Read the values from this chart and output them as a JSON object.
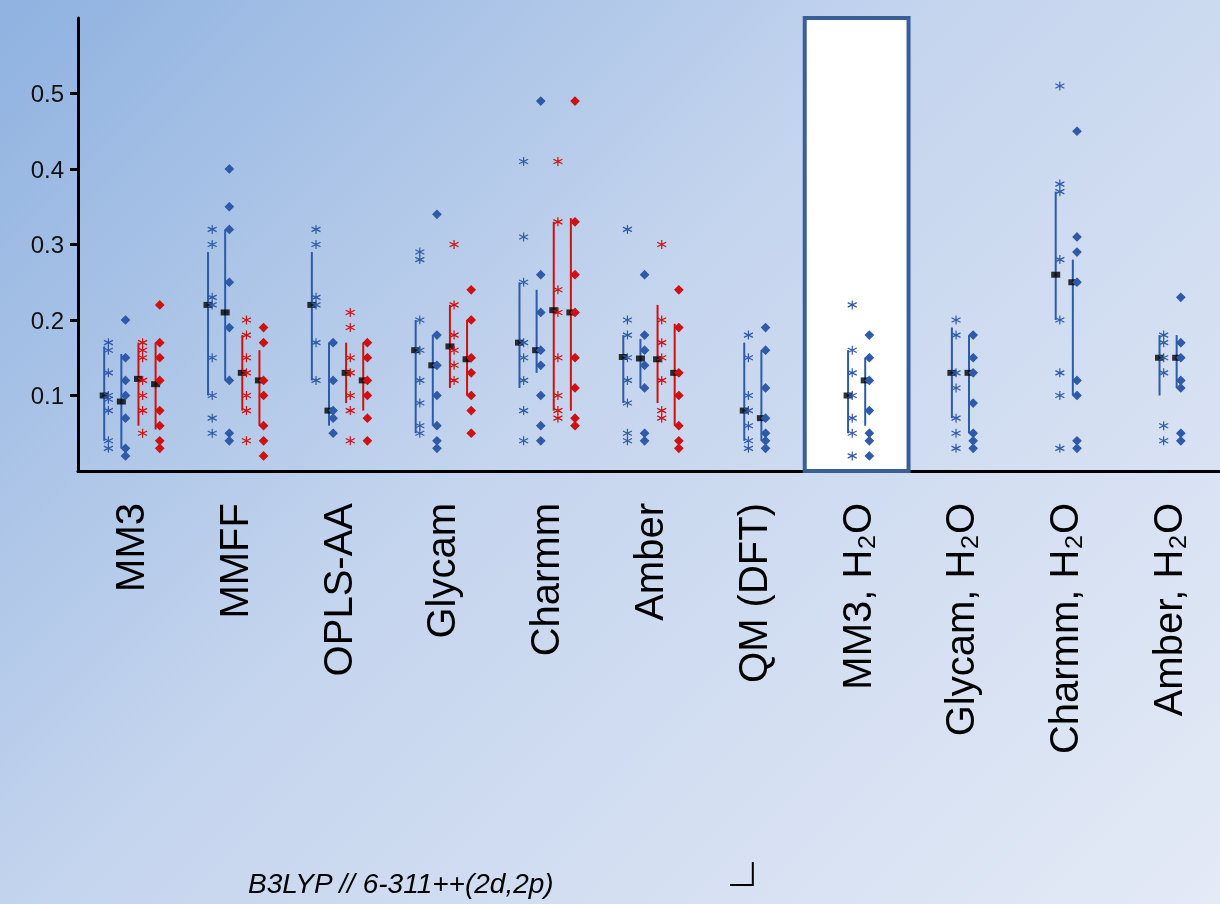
{
  "chart_data": {
    "type": "scatter",
    "categories": [
      "MM3",
      "MMFF",
      "OPLS-AA",
      "Glycam",
      "Charmm",
      "Amber",
      "QM (DFT)",
      "MM3, H₂O",
      "Glycam, H₂O",
      "Charmm, H₂O",
      "Amber, H₂O"
    ],
    "ylim": [
      0,
      0.6
    ],
    "yticks": [
      0.1,
      0.2,
      0.3,
      0.4,
      0.5
    ],
    "grid": false,
    "annotations": [
      "B3LYP // 6-311++(2d,2p)"
    ],
    "bands": [
      {
        "axis": "x",
        "from": "MM3, H₂O",
        "to": "MM3, H₂O",
        "color": "#ffffff"
      }
    ],
    "series": [
      {
        "color": "#000000",
        "values": [
          0.1,
          0.22,
          0.22,
          0.16,
          0.17,
          0.151,
          0.08,
          0.1,
          0.13,
          0.26,
          0.15
        ],
        "errors": [
          [
            0.04,
            0.165
          ],
          [
            0.1,
            0.29
          ],
          [
            0.12,
            0.29
          ],
          [
            0.05,
            0.2
          ],
          [
            0.11,
            0.25
          ],
          [
            0.09,
            0.18
          ],
          [
            0.04,
            0.17
          ],
          [
            0.05,
            0.16
          ],
          [
            0.07,
            0.19
          ],
          [
            0.2,
            0.37
          ],
          [
            0.1,
            0.18
          ]
        ]
      },
      {
        "color": "#000000",
        "values": [
          0.092,
          0.21,
          0.08,
          0.14,
          0.16,
          0.149,
          0.07,
          0.12,
          0.13,
          0.25,
          0.15
        ],
        "errors": [
          [
            0.03,
            0.155
          ],
          [
            0.12,
            0.32
          ],
          [
            0.06,
            0.17
          ],
          [
            0.06,
            0.18
          ],
          [
            0.13,
            0.24
          ],
          [
            0.11,
            0.175
          ],
          [
            0.04,
            0.16
          ],
          [
            0.06,
            0.15
          ],
          [
            0.05,
            0.18
          ],
          [
            0.1,
            0.28
          ],
          [
            0.11,
            0.18
          ]
        ]
      },
      {
        "color": "#000000",
        "values": [
          0.122,
          0.13,
          0.13,
          0.165,
          0.213,
          0.148,
          null,
          null,
          null,
          null,
          null
        ],
        "errors": [
          [
            0.06,
            0.17
          ],
          [
            0.08,
            0.18
          ],
          [
            0.09,
            0.17
          ],
          [
            0.11,
            0.22
          ],
          [
            0.08,
            0.33
          ],
          [
            0.09,
            0.22
          ],
          null,
          null,
          null,
          null,
          null
        ]
      },
      {
        "color": "#000000",
        "values": [
          0.115,
          0.12,
          0.12,
          0.148,
          0.21,
          0.13,
          null,
          null,
          null,
          null,
          null
        ],
        "errors": [
          [
            0.055,
            0.17
          ],
          [
            0.06,
            0.16
          ],
          [
            0.08,
            0.17
          ],
          [
            0.1,
            0.2
          ],
          [
            0.08,
            0.335
          ],
          [
            0.06,
            0.195
          ],
          null,
          null,
          null,
          null,
          null
        ]
      },
      {
        "marker": "cross",
        "color": "#2e5aa8",
        "x": [
          "MM3",
          "MM3",
          "MM3",
          "MM3",
          "MM3",
          "MM3",
          "MM3",
          "MM3",
          "MMFF",
          "MMFF",
          "MMFF",
          "MMFF",
          "MMFF",
          "MMFF",
          "MMFF",
          "MMFF",
          "OPLS-AA",
          "OPLS-AA",
          "OPLS-AA",
          "OPLS-AA",
          "OPLS-AA",
          "OPLS-AA",
          "Glycam",
          "Glycam",
          "Glycam",
          "Glycam",
          "Glycam",
          "Glycam",
          "Glycam",
          "Glycam",
          "Charmm",
          "Charmm",
          "Charmm",
          "Charmm",
          "Charmm",
          "Charmm",
          "Charmm",
          "Charmm",
          "Amber",
          "Amber",
          "Amber",
          "Amber",
          "Amber",
          "Amber",
          "Amber",
          "Amber",
          "QM (DFT)",
          "QM (DFT)",
          "QM (DFT)",
          "QM (DFT)",
          "QM (DFT)",
          "QM (DFT)",
          "QM (DFT)",
          "MM3, H₂O",
          "MM3, H₂O",
          "MM3, H₂O",
          "MM3, H₂O",
          "MM3, H₂O",
          "MM3, H₂O",
          "MM3, H₂O",
          "Glycam, H₂O",
          "Glycam, H₂O",
          "Glycam, H₂O",
          "Glycam, H₂O",
          "Glycam, H₂O",
          "Glycam, H₂O",
          "Glycam, H₂O",
          "Charmm, H₂O",
          "Charmm, H₂O",
          "Charmm, H₂O",
          "Charmm, H₂O",
          "Charmm, H₂O",
          "Charmm, H₂O",
          "Charmm, H₂O",
          "Charmm, H₂O",
          "Amber, H₂O",
          "Amber, H₂O",
          "Amber, H₂O",
          "Amber, H₂O",
          "Amber, H₂O",
          "Amber, H₂O"
        ],
        "values": [
          0.17,
          0.16,
          0.13,
          0.1,
          0.095,
          0.08,
          0.04,
          0.03,
          0.32,
          0.3,
          0.23,
          0.22,
          0.15,
          0.1,
          0.07,
          0.05,
          0.32,
          0.3,
          0.23,
          0.22,
          0.17,
          0.12,
          0.29,
          0.28,
          0.2,
          0.16,
          0.12,
          0.09,
          0.06,
          0.05,
          0.41,
          0.31,
          0.25,
          0.17,
          0.15,
          0.12,
          0.08,
          0.04,
          0.32,
          0.2,
          0.18,
          0.15,
          0.12,
          0.09,
          0.05,
          0.04,
          0.18,
          0.15,
          0.1,
          0.08,
          0.06,
          0.04,
          0.03,
          0.22,
          0.16,
          0.13,
          0.1,
          0.07,
          0.05,
          0.02,
          0.2,
          0.18,
          0.13,
          0.11,
          0.07,
          0.05,
          0.03,
          0.51,
          0.38,
          0.37,
          0.28,
          0.2,
          0.13,
          0.1,
          0.03,
          0.18,
          0.17,
          0.15,
          0.13,
          0.06,
          0.04
        ]
      },
      {
        "marker": "diamond",
        "color": "#2e5aa8",
        "x": [
          "MM3",
          "MM3",
          "MM3",
          "MM3",
          "MM3",
          "MM3",
          "MM3",
          "MMFF",
          "MMFF",
          "MMFF",
          "MMFF",
          "MMFF",
          "MMFF",
          "MMFF",
          "MMFF",
          "OPLS-AA",
          "OPLS-AA",
          "OPLS-AA",
          "OPLS-AA",
          "OPLS-AA",
          "Glycam",
          "Glycam",
          "Glycam",
          "Glycam",
          "Glycam",
          "Glycam",
          "Glycam",
          "Charmm",
          "Charmm",
          "Charmm",
          "Charmm",
          "Charmm",
          "Charmm",
          "Charmm",
          "Charmm",
          "Amber",
          "Amber",
          "Amber",
          "Amber",
          "Amber",
          "Amber",
          "Amber",
          "QM (DFT)",
          "QM (DFT)",
          "QM (DFT)",
          "QM (DFT)",
          "QM (DFT)",
          "QM (DFT)",
          "QM (DFT)",
          "MM3, H₂O",
          "MM3, H₂O",
          "MM3, H₂O",
          "MM3, H₂O",
          "MM3, H₂O",
          "MM3, H₂O",
          "MM3, H₂O",
          "Glycam, H₂O",
          "Glycam, H₂O",
          "Glycam, H₂O",
          "Glycam, H₂O",
          "Glycam, H₂O",
          "Glycam, H₂O",
          "Glycam, H₂O",
          "Charmm, H₂O",
          "Charmm, H₂O",
          "Charmm, H₂O",
          "Charmm, H₂O",
          "Charmm, H₂O",
          "Charmm, H₂O",
          "Charmm, H₂O",
          "Charmm, H₂O",
          "Amber, H₂O",
          "Amber, H₂O",
          "Amber, H₂O",
          "Amber, H₂O",
          "Amber, H₂O",
          "Amber, H₂O",
          "Amber, H₂O"
        ],
        "values": [
          0.2,
          0.15,
          0.12,
          0.1,
          0.07,
          0.03,
          0.02,
          0.4,
          0.35,
          0.32,
          0.25,
          0.19,
          0.12,
          0.05,
          0.04,
          0.17,
          0.12,
          0.08,
          0.07,
          0.05,
          0.34,
          0.18,
          0.14,
          0.1,
          0.06,
          0.04,
          0.03,
          0.49,
          0.26,
          0.21,
          0.16,
          0.14,
          0.1,
          0.06,
          0.04,
          0.26,
          0.18,
          0.16,
          0.14,
          0.11,
          0.05,
          0.04,
          0.19,
          0.16,
          0.11,
          0.07,
          0.05,
          0.04,
          0.03,
          0.18,
          0.15,
          0.12,
          0.08,
          0.05,
          0.04,
          0.02,
          0.18,
          0.15,
          0.13,
          0.09,
          0.05,
          0.04,
          0.03,
          0.45,
          0.31,
          0.29,
          0.25,
          0.12,
          0.1,
          0.04,
          0.03,
          0.23,
          0.17,
          0.15,
          0.12,
          0.11,
          0.05,
          0.04
        ]
      },
      {
        "marker": "cross",
        "color": "#d01010",
        "x": [
          "MM3",
          "MM3",
          "MM3",
          "MM3",
          "MM3",
          "MM3",
          "MM3",
          "MMFF",
          "MMFF",
          "MMFF",
          "MMFF",
          "MMFF",
          "MMFF",
          "MMFF",
          "OPLS-AA",
          "OPLS-AA",
          "OPLS-AA",
          "OPLS-AA",
          "OPLS-AA",
          "OPLS-AA",
          "OPLS-AA",
          "Glycam",
          "Glycam",
          "Glycam",
          "Glycam",
          "Glycam",
          "Glycam",
          "Charmm",
          "Charmm",
          "Charmm",
          "Charmm",
          "Charmm",
          "Charmm",
          "Charmm",
          "Charmm",
          "Amber",
          "Amber",
          "Amber",
          "Amber",
          "Amber",
          "Amber",
          "Amber"
        ],
        "values": [
          0.17,
          0.16,
          0.15,
          0.12,
          0.1,
          0.08,
          0.05,
          0.2,
          0.18,
          0.15,
          0.13,
          0.1,
          0.08,
          0.04,
          0.21,
          0.19,
          0.15,
          0.13,
          0.1,
          0.08,
          0.04,
          0.3,
          0.22,
          0.18,
          0.16,
          0.14,
          0.12,
          0.41,
          0.33,
          0.24,
          0.21,
          0.15,
          0.1,
          0.08,
          0.07,
          0.3,
          0.2,
          0.17,
          0.15,
          0.12,
          0.08,
          0.07
        ]
      },
      {
        "marker": "diamond",
        "color": "#d01010",
        "x": [
          "MM3",
          "MM3",
          "MM3",
          "MM3",
          "MM3",
          "MM3",
          "MM3",
          "MM3",
          "MMFF",
          "MMFF",
          "MMFF",
          "MMFF",
          "MMFF",
          "MMFF",
          "MMFF",
          "OPLS-AA",
          "OPLS-AA",
          "OPLS-AA",
          "OPLS-AA",
          "OPLS-AA",
          "OPLS-AA",
          "Glycam",
          "Glycam",
          "Glycam",
          "Glycam",
          "Glycam",
          "Glycam",
          "Glycam",
          "Charmm",
          "Charmm",
          "Charmm",
          "Charmm",
          "Charmm",
          "Charmm",
          "Charmm",
          "Charmm",
          "Amber",
          "Amber",
          "Amber",
          "Amber",
          "Amber",
          "Amber",
          "Amber"
        ],
        "values": [
          0.22,
          0.17,
          0.15,
          0.12,
          0.08,
          0.06,
          0.04,
          0.03,
          0.19,
          0.17,
          0.12,
          0.1,
          0.06,
          0.04,
          0.02,
          0.17,
          0.15,
          0.12,
          0.1,
          0.07,
          0.04,
          0.24,
          0.2,
          0.15,
          0.13,
          0.1,
          0.08,
          0.05,
          0.49,
          0.33,
          0.26,
          0.21,
          0.15,
          0.11,
          0.07,
          0.06,
          0.24,
          0.19,
          0.13,
          0.1,
          0.06,
          0.04,
          0.03
        ]
      }
    ]
  }
}
